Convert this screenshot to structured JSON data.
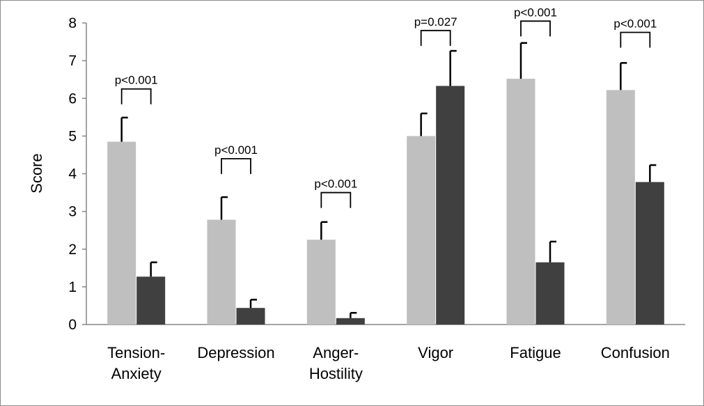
{
  "chart_data": {
    "type": "bar",
    "ylabel": "Score",
    "ylim": [
      0,
      8
    ],
    "yticks": [
      "0",
      "1",
      "2",
      "3",
      "4",
      "5",
      "6",
      "7",
      "8"
    ],
    "categories": [
      [
        "Tension-",
        "Anxiety"
      ],
      [
        "Depression"
      ],
      [
        "Anger-",
        "Hostility"
      ],
      [
        "Vigor"
      ],
      [
        "Fatigue"
      ],
      [
        "Confusion"
      ]
    ],
    "series": [
      {
        "color": "#bfbfbf",
        "values": [
          4.85,
          2.78,
          2.25,
          5.0,
          6.52,
          6.22
        ],
        "error": [
          0.64,
          0.6,
          0.47,
          0.6,
          0.95,
          0.72
        ]
      },
      {
        "color": "#404040",
        "values": [
          1.27,
          0.44,
          0.17,
          6.33,
          1.65,
          3.78
        ],
        "error": [
          0.38,
          0.22,
          0.14,
          0.93,
          0.55,
          0.45
        ]
      }
    ],
    "significance": [
      {
        "text": "p<0.001",
        "level": 6.25
      },
      {
        "text": "p<0.001",
        "level": 4.4
      },
      {
        "text": "p<0.001",
        "level": 3.5
      },
      {
        "text": "p=0.027",
        "level": 7.8
      },
      {
        "text": "p<0.001",
        "level": 8.05
      },
      {
        "text": "p<0.001",
        "level": 7.75
      }
    ],
    "grid": false,
    "legend": "none"
  }
}
